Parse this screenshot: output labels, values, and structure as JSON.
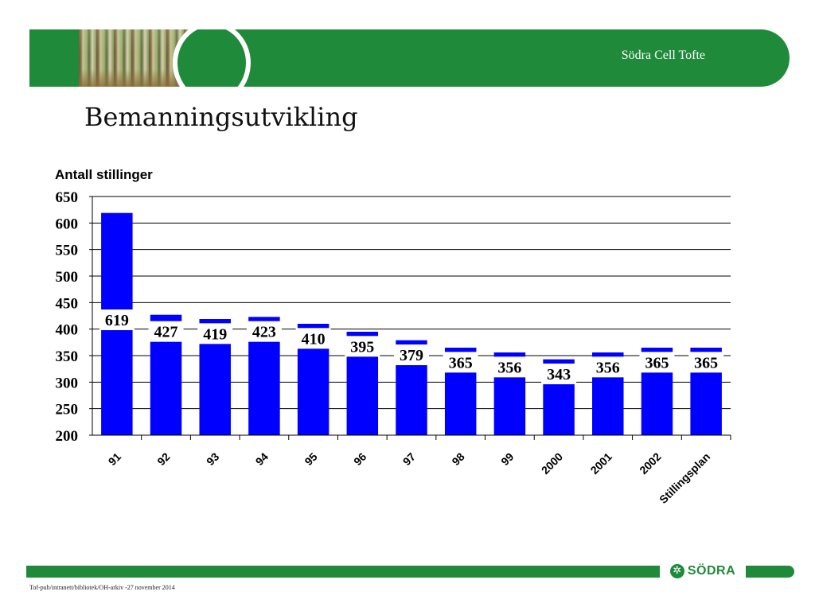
{
  "header": {
    "company": "Södra Cell Tofte"
  },
  "slide_title": "Bemanningsutvikling",
  "chart_data": {
    "type": "bar",
    "title": "",
    "ylabel": "Antall stillinger",
    "xlabel": "",
    "categories": [
      "91",
      "92",
      "93",
      "94",
      "95",
      "96",
      "97",
      "98",
      "99",
      "2000",
      "2001",
      "2002",
      "Stillingsplan"
    ],
    "values": [
      619,
      427,
      419,
      423,
      410,
      395,
      379,
      365,
      356,
      343,
      356,
      365,
      365
    ],
    "ylim": [
      200,
      650
    ],
    "yticks": [
      200,
      250,
      300,
      350,
      400,
      450,
      500,
      550,
      600,
      650
    ],
    "grid": true,
    "bar_color": "#0000ff"
  },
  "footer": {
    "logo_text": "SÖDRA",
    "logo_icon": "sodra-logo-icon",
    "path_text": "Tof-pub/intranett/bibliotek/OH-arkiv  -27 november 2014"
  },
  "colors": {
    "brand_green": "#1f8a3a",
    "bar_blue": "#0000ff"
  }
}
